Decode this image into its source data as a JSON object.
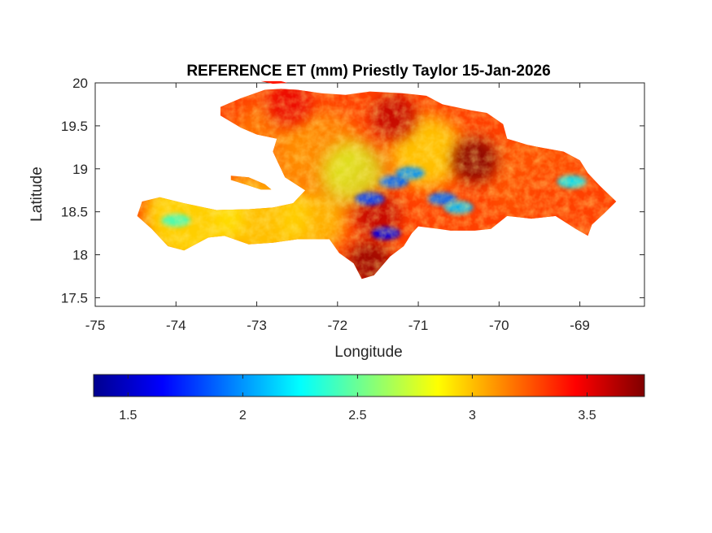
{
  "chart_data": {
    "type": "heatmap",
    "title": "REFERENCE ET (mm) Priestly Taylor 15-Jan-2026",
    "xlabel": "Longitude",
    "ylabel": "Latitude",
    "xlim": [
      -75,
      -68.2
    ],
    "ylim": [
      17.4,
      20
    ],
    "xticks": [
      -75,
      -74,
      -73,
      -72,
      -71,
      -70,
      -69
    ],
    "xtick_labels": [
      "-75",
      "-74",
      "-73",
      "-72",
      "-71",
      "-70",
      "-69"
    ],
    "yticks": [
      17.5,
      18,
      18.5,
      19,
      19.5,
      20
    ],
    "ytick_labels": [
      "17.5",
      "18",
      "18.5",
      "19",
      "19.5",
      "20"
    ],
    "grid": false,
    "colormap": "jet",
    "colorbar": {
      "orientation": "horizontal",
      "placement": "below",
      "range": [
        1.35,
        3.75
      ],
      "ticks": [
        1.5,
        2,
        2.5,
        3,
        3.5
      ],
      "tick_labels": [
        "1.5",
        "2",
        "2.5",
        "3",
        "3.5"
      ]
    },
    "regions": [
      {
        "name": "Hispaniola",
        "lon": [
          -74.5,
          -68.3
        ],
        "lat": [
          17.6,
          19.95
        ],
        "typical_value": 3.3
      },
      {
        "name": "Gonave Island",
        "lon": [
          -73.3,
          -72.8
        ],
        "lat": [
          18.75,
          18.95
        ],
        "typical_value": 3.0
      },
      {
        "name": "Tortuga Island",
        "lon": [
          -72.95,
          -72.6
        ],
        "lat": [
          20.0,
          20.1
        ],
        "typical_value": 3.4
      }
    ],
    "low_value_zones": [
      {
        "lon": -71.3,
        "lat": 18.85,
        "value": 1.9
      },
      {
        "lon": -71.1,
        "lat": 18.95,
        "value": 2.0
      },
      {
        "lon": -71.6,
        "lat": 18.65,
        "value": 1.8
      },
      {
        "lon": -71.4,
        "lat": 18.25,
        "value": 1.6
      },
      {
        "lon": -70.7,
        "lat": 18.65,
        "value": 1.9
      },
      {
        "lon": -70.5,
        "lat": 18.55,
        "value": 2.1
      },
      {
        "lon": -69.1,
        "lat": 18.85,
        "value": 2.2
      },
      {
        "lon": -74.0,
        "lat": 18.4,
        "value": 2.4
      }
    ],
    "high_value_zones": [
      {
        "lon": -70.3,
        "lat": 19.1,
        "value": 3.75
      },
      {
        "lon": -71.6,
        "lat": 17.9,
        "value": 3.7
      },
      {
        "lon": -71.5,
        "lat": 18.45,
        "value": 3.6
      },
      {
        "lon": -71.3,
        "lat": 19.6,
        "value": 3.6
      },
      {
        "lon": -72.6,
        "lat": 19.75,
        "value": 3.5
      }
    ]
  }
}
